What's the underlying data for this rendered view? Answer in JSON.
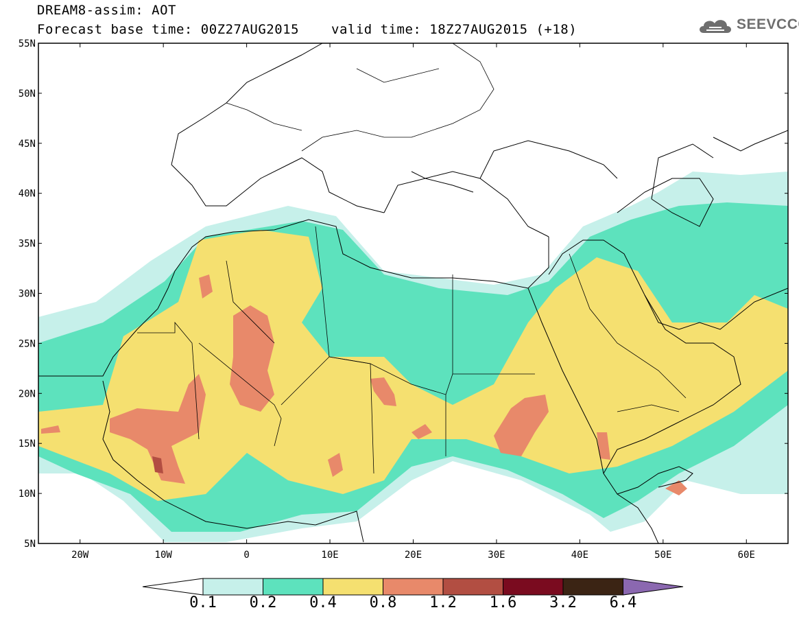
{
  "title": {
    "line1": "DREAM8-assim: AOT",
    "line2_base": "Forecast base time: 00Z27AUG2015",
    "line2_valid": "valid time: 18Z27AUG2015 (+18)"
  },
  "logo": {
    "text": "SEEVCCC",
    "icon": "cloud-icon"
  },
  "map": {
    "lon_range": [
      -25,
      65
    ],
    "lat_range": [
      5,
      55
    ],
    "lat_labels": [
      "55N",
      "50N",
      "45N",
      "40N",
      "35N",
      "30N",
      "25N",
      "20N",
      "15N",
      "10N",
      "5N"
    ],
    "lon_labels": [
      "20W",
      "10W",
      "0",
      "10E",
      "20E",
      "30E",
      "40E",
      "50E",
      "60E"
    ]
  },
  "colorbar": {
    "labels": [
      "0.1",
      "0.2",
      "0.4",
      "0.8",
      "1.2",
      "1.6",
      "3.2",
      "6.4"
    ],
    "colors": [
      "#ffffff",
      "#c6f0ea",
      "#5de2bd",
      "#f5e070",
      "#e8896a",
      "#b24e42",
      "#7a0b1f",
      "#3b2414",
      "#8b68b0"
    ]
  }
}
